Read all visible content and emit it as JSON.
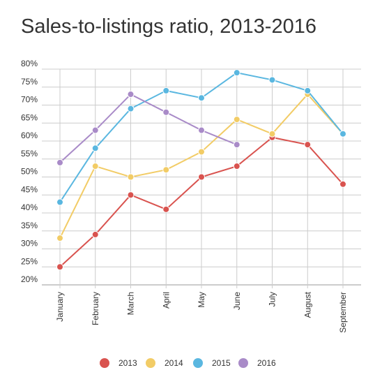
{
  "chart_data": {
    "type": "line",
    "title": "Sales-to-listings ratio, 2013-2016",
    "xlabel": "",
    "ylabel": "",
    "categories": [
      "January",
      "February",
      "March",
      "April",
      "May",
      "June",
      "July",
      "August",
      "September"
    ],
    "y_ticks": [
      "20%",
      "25%",
      "30%",
      "35%",
      "40%",
      "45%",
      "50%",
      "55%",
      "60%",
      "65%",
      "70%",
      "75%",
      "80%"
    ],
    "ylim": [
      20,
      80
    ],
    "grid": true,
    "legend_position": "bottom",
    "series": [
      {
        "name": "2013",
        "color": "#d9534f",
        "values": [
          25,
          34,
          45,
          41,
          50,
          53,
          61,
          59,
          48
        ]
      },
      {
        "name": "2014",
        "color": "#f2cc66",
        "values": [
          33,
          53,
          50,
          52,
          57,
          66,
          62,
          73,
          62
        ]
      },
      {
        "name": "2015",
        "color": "#5ab7e0",
        "values": [
          43,
          58,
          69,
          74,
          72,
          79,
          77,
          74,
          62
        ]
      },
      {
        "name": "2016",
        "color": "#a98bc8",
        "values": [
          54,
          63,
          73,
          68,
          63,
          59,
          null,
          null,
          null
        ]
      }
    ]
  }
}
